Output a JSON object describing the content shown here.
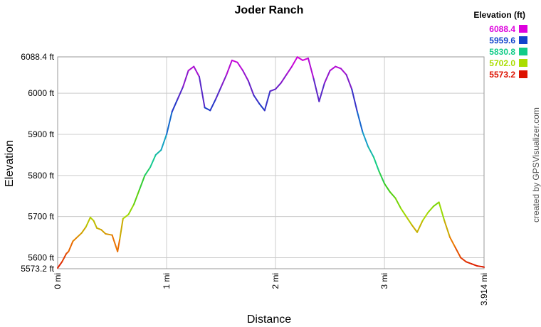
{
  "chart_data": {
    "type": "line",
    "title": "Joder Ranch",
    "xlabel": "Distance",
    "ylabel": "Elevation",
    "xlim": [
      0,
      3.914
    ],
    "ylim": [
      5573.2,
      6088.4
    ],
    "grid": true,
    "x_ticks": [
      {
        "value": 0,
        "label": "0 mi"
      },
      {
        "value": 1,
        "label": "1 mi"
      },
      {
        "value": 2,
        "label": "2 mi"
      },
      {
        "value": 3,
        "label": "3 mi"
      },
      {
        "value": 3.914,
        "label": "3.914 mi"
      }
    ],
    "y_ticks": [
      {
        "value": 5573.2,
        "label": "5573.2 ft"
      },
      {
        "value": 5600,
        "label": "5600 ft"
      },
      {
        "value": 5700,
        "label": "5700 ft"
      },
      {
        "value": 5800,
        "label": "5800 ft"
      },
      {
        "value": 5900,
        "label": "5900 ft"
      },
      {
        "value": 6000,
        "label": "6000 ft"
      },
      {
        "value": 6088.4,
        "label": "6088.4 ft"
      }
    ],
    "legend": {
      "title": "Elevation (ft)",
      "placement": "top-right",
      "entries": [
        {
          "label": "6088.4",
          "color": "#dd00dd"
        },
        {
          "label": "5959.6",
          "color": "#1144cc"
        },
        {
          "label": "5830.8",
          "color": "#11cc88"
        },
        {
          "label": "5702.0",
          "color": "#aadd00"
        },
        {
          "label": "5573.2",
          "color": "#dd1100"
        }
      ]
    },
    "series": [
      {
        "x": [
          0.0,
          0.04,
          0.08,
          0.1,
          0.14,
          0.18,
          0.22,
          0.26,
          0.3,
          0.33,
          0.36,
          0.4,
          0.44,
          0.5,
          0.55,
          0.57,
          0.6,
          0.65,
          0.7,
          0.75,
          0.8,
          0.85,
          0.9,
          0.95,
          1.0,
          1.05,
          1.1,
          1.15,
          1.2,
          1.25,
          1.3,
          1.35,
          1.4,
          1.45,
          1.5,
          1.55,
          1.6,
          1.65,
          1.7,
          1.75,
          1.8,
          1.85,
          1.9,
          1.95,
          2.0,
          2.05,
          2.1,
          2.15,
          2.2,
          2.25,
          2.3,
          2.35,
          2.4,
          2.45,
          2.5,
          2.55,
          2.6,
          2.65,
          2.7,
          2.75,
          2.8,
          2.85,
          2.9,
          2.95,
          3.0,
          3.05,
          3.1,
          3.15,
          3.2,
          3.25,
          3.3,
          3.35,
          3.4,
          3.45,
          3.5,
          3.55,
          3.6,
          3.65,
          3.7,
          3.75,
          3.8,
          3.85,
          3.9,
          3.914
        ],
        "y": [
          5575,
          5590,
          5610,
          5615,
          5640,
          5650,
          5660,
          5675,
          5698,
          5690,
          5672,
          5668,
          5658,
          5655,
          5615,
          5645,
          5695,
          5705,
          5730,
          5765,
          5800,
          5820,
          5850,
          5862,
          5900,
          5955,
          5985,
          6015,
          6055,
          6065,
          6040,
          5965,
          5958,
          5985,
          6015,
          6045,
          6080,
          6075,
          6055,
          6030,
          5995,
          5975,
          5958,
          6005,
          6010,
          6025,
          6045,
          6065,
          6088,
          6080,
          6085,
          6035,
          5980,
          6025,
          6055,
          6065,
          6060,
          6045,
          6010,
          5955,
          5905,
          5870,
          5845,
          5810,
          5780,
          5760,
          5745,
          5720,
          5700,
          5680,
          5662,
          5690,
          5710,
          5725,
          5735,
          5690,
          5650,
          5625,
          5600,
          5590,
          5585,
          5580,
          5578,
          5577
        ]
      }
    ]
  },
  "credit": "created by GPSVisualizer.com"
}
